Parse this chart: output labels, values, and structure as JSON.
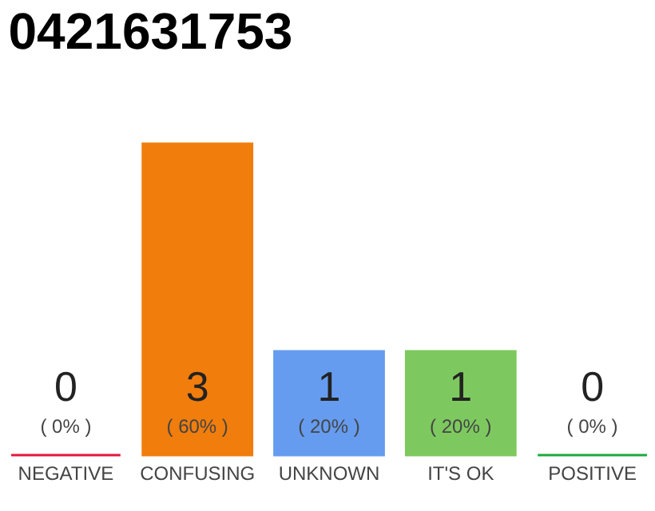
{
  "chart_data": {
    "type": "bar",
    "title": "0421631753",
    "categories": [
      "NEGATIVE",
      "CONFUSING",
      "UNKNOWN",
      "IT'S OK",
      "POSITIVE"
    ],
    "values": [
      0,
      3,
      1,
      1,
      0
    ],
    "colors": [
      "#e5173f",
      "#f07d0c",
      "#659cef",
      "#7ec95f",
      "#1fa83c"
    ],
    "data_labels": true,
    "annotations": [
      {
        "text": "( 0% )",
        "x": "NEGATIVE",
        "y": 0
      },
      {
        "text": "( 60% )",
        "x": "CONFUSING",
        "y": 0
      },
      {
        "text": "( 20% )",
        "x": "UNKNOWN",
        "y": 0
      },
      {
        "text": "( 20% )",
        "x": "IT'S OK",
        "y": 0
      },
      {
        "text": "( 0% )",
        "x": "POSITIVE",
        "y": 0
      }
    ]
  }
}
